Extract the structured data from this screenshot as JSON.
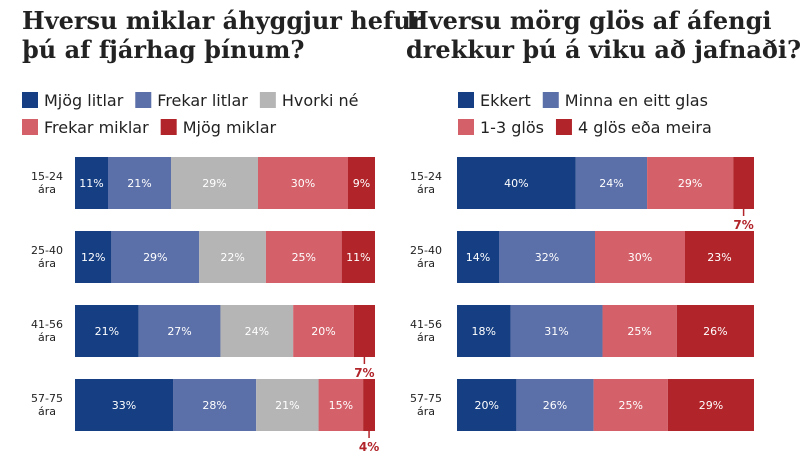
{
  "colors": {
    "dark_blue": "#163f83",
    "mid_blue": "#5b6fa8",
    "gray": "#b5b5b5",
    "light_red": "#d4616a",
    "dark_red": "#b1242a",
    "text": "#222222",
    "bar_text": "#ffffff"
  },
  "chart_data": [
    {
      "type": "bar",
      "orientation": "horizontal",
      "stacked": true,
      "normalized": true,
      "title": [
        "Hversu miklar áhyggjur hefur",
        "þú af fjárhag þínum?"
      ],
      "legend_position": "top",
      "value_suffix": "%",
      "categories": [
        [
          "15-24",
          "ára"
        ],
        [
          "25-40",
          "ára"
        ],
        [
          "41-56",
          "ára"
        ],
        [
          "57-75",
          "ára"
        ]
      ],
      "series": [
        {
          "name": "Mjög litlar",
          "color": "#163f83",
          "values": [
            11,
            12,
            21,
            33
          ]
        },
        {
          "name": "Frekar litlar",
          "color": "#5b6fa8",
          "values": [
            21,
            29,
            27,
            28
          ]
        },
        {
          "name": "Hvorki né",
          "color": "#b5b5b5",
          "values": [
            29,
            22,
            24,
            21
          ]
        },
        {
          "name": "Frekar miklar",
          "color": "#d4616a",
          "values": [
            30,
            25,
            20,
            15
          ]
        },
        {
          "name": "Mjög miklar",
          "color": "#b1242a",
          "values": [
            9,
            11,
            7,
            4
          ]
        }
      ]
    },
    {
      "type": "bar",
      "orientation": "horizontal",
      "stacked": true,
      "normalized": true,
      "title": [
        "Hversu mörg glös af áfengi",
        "drekkur þú á viku að jafnaði?"
      ],
      "legend_position": "top",
      "value_suffix": "%",
      "categories": [
        [
          "15-24",
          "ára"
        ],
        [
          "25-40",
          "ára"
        ],
        [
          "41-56",
          "ára"
        ],
        [
          "57-75",
          "ára"
        ]
      ],
      "series": [
        {
          "name": "Ekkert",
          "color": "#163f83",
          "values": [
            40,
            14,
            18,
            20
          ]
        },
        {
          "name": "Minna en eitt glas",
          "color": "#5b6fa8",
          "values": [
            24,
            32,
            31,
            26
          ]
        },
        {
          "name": "1-3 glös",
          "color": "#d4616a",
          "values": [
            29,
            30,
            25,
            25
          ]
        },
        {
          "name": "4 glös eða meira",
          "color": "#b1242a",
          "values": [
            7,
            23,
            26,
            29
          ]
        }
      ]
    }
  ]
}
